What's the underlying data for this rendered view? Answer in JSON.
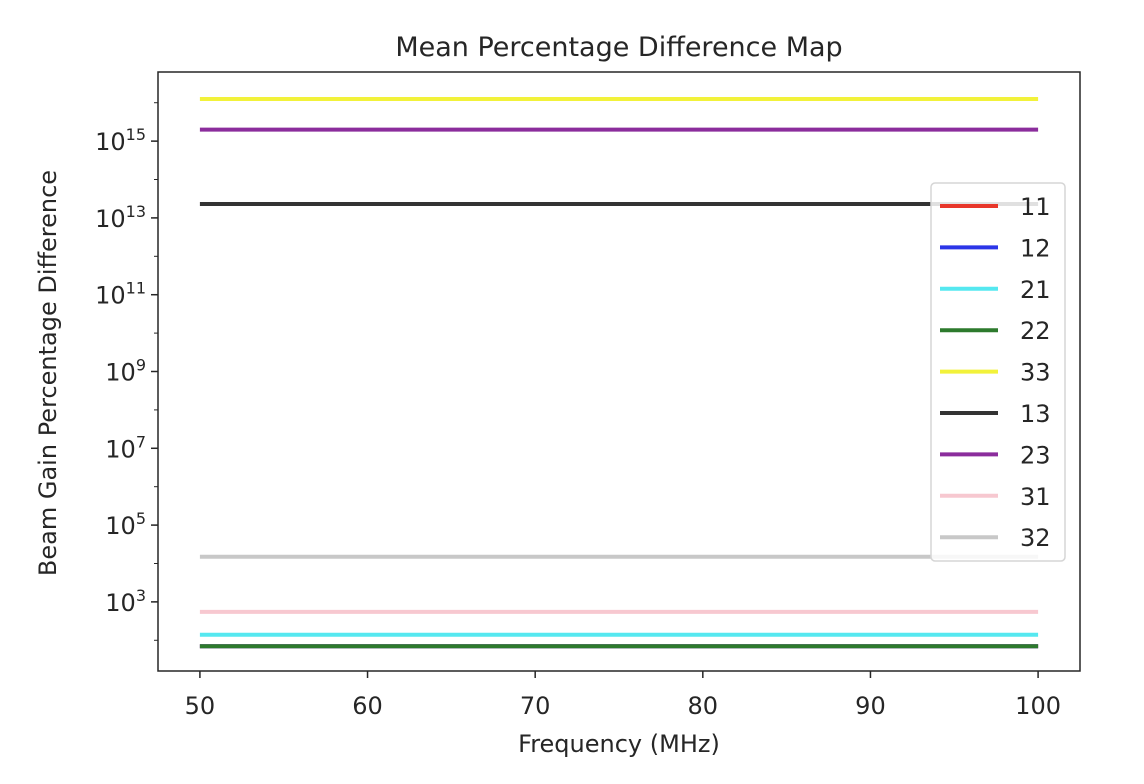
{
  "chart_data": {
    "type": "line",
    "title": "Mean Percentage Difference Map",
    "xlabel": "Frequency (MHz)",
    "ylabel": "Beam Gain Percentage Difference",
    "yscale": "log",
    "xlim": [
      47.5,
      102.5
    ],
    "ylim_log10": [
      1.2,
      16.8
    ],
    "x_ticks": [
      50,
      60,
      70,
      80,
      90,
      100
    ],
    "y_ticks": [
      {
        "base": "10",
        "exp": "3",
        "value": 1000
      },
      {
        "base": "10",
        "exp": "5",
        "value": 100000
      },
      {
        "base": "10",
        "exp": "7",
        "value": 10000000
      },
      {
        "base": "10",
        "exp": "9",
        "value": 1000000000
      },
      {
        "base": "10",
        "exp": "11",
        "value": 100000000000
      },
      {
        "base": "10",
        "exp": "13",
        "value": 10000000000000
      },
      {
        "base": "10",
        "exp": "15",
        "value": 1000000000000000
      }
    ],
    "grid": false,
    "legend_position": "center-right",
    "x": [
      50,
      100
    ],
    "series": [
      {
        "name": "11",
        "color": "#e8372b",
        "values": [
          70,
          70
        ]
      },
      {
        "name": "12",
        "color": "#2b35e8",
        "values": [
          70,
          70
        ]
      },
      {
        "name": "21",
        "color": "#55e8f0",
        "values": [
          140,
          140
        ]
      },
      {
        "name": "22",
        "color": "#2d7a2d",
        "values": [
          70,
          70
        ]
      },
      {
        "name": "33",
        "color": "#f2f23a",
        "values": [
          12500000000000000,
          12500000000000000
        ]
      },
      {
        "name": "13",
        "color": "#333333",
        "values": [
          23000000000000,
          23000000000000
        ]
      },
      {
        "name": "23",
        "color": "#8b2d9c",
        "values": [
          2000000000000000,
          2000000000000000
        ]
      },
      {
        "name": "31",
        "color": "#f7c8d0",
        "values": [
          550,
          550
        ]
      },
      {
        "name": "32",
        "color": "#c8c8c8",
        "values": [
          15000,
          15000
        ]
      }
    ],
    "draw_order": [
      "33",
      "23",
      "13",
      "32",
      "31",
      "21",
      "11",
      "12",
      "22"
    ]
  }
}
